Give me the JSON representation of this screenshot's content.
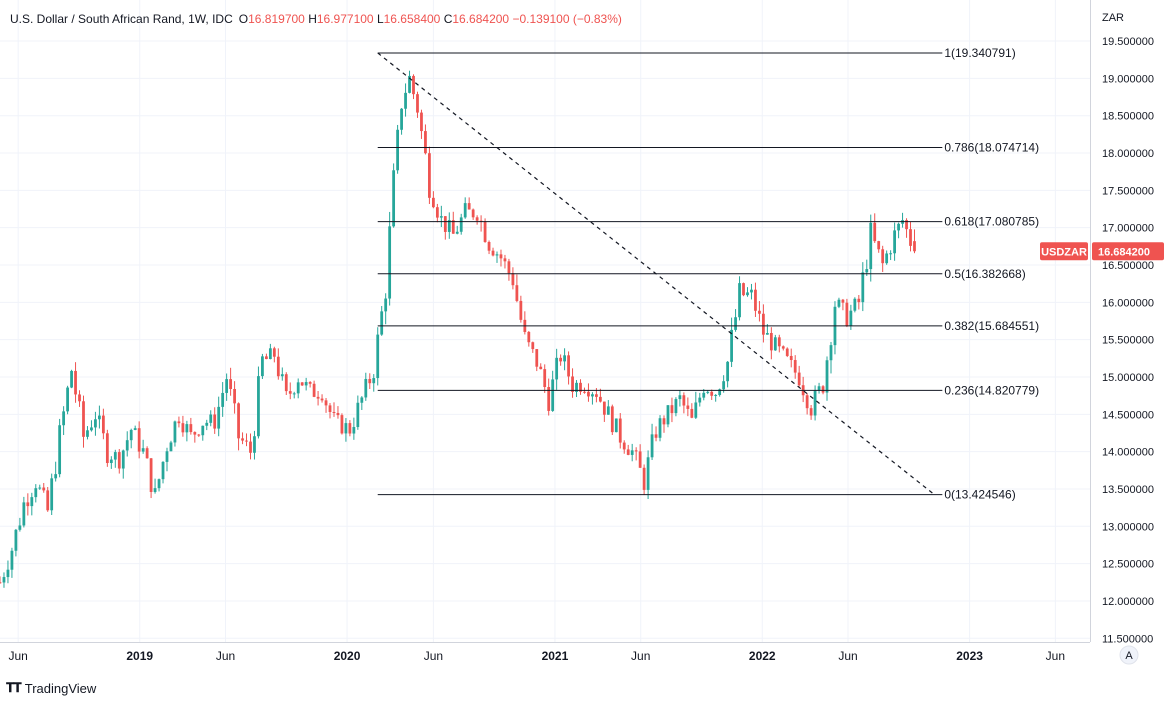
{
  "legend": {
    "symbol": "U.S. Dollar / South African Rand, 1W, IDC",
    "o_label": "O",
    "o_value": "16.819700",
    "h_label": "H",
    "h_value": "16.977100",
    "l_label": "L",
    "l_value": "16.658400",
    "c_label": "C",
    "c_value": "16.684200",
    "change": "−0.139100 (−0.83%)"
  },
  "branding": {
    "logo_text": "TradingView"
  },
  "colors": {
    "up": "#26a69a",
    "down": "#ef5350",
    "price_tag": "#ef5350",
    "grid": "#f0f3fa",
    "line": "#131722"
  },
  "chart_data": {
    "type": "candlestick",
    "currency_label": "ZAR",
    "ylim": [
      11.45,
      20.05
    ],
    "y_ticks": [
      {
        "value": 11.5,
        "label": "11.500000"
      },
      {
        "value": 12.0,
        "label": "12.000000"
      },
      {
        "value": 12.5,
        "label": "12.500000"
      },
      {
        "value": 13.0,
        "label": "13.000000"
      },
      {
        "value": 13.5,
        "label": "13.500000"
      },
      {
        "value": 14.0,
        "label": "14.000000"
      },
      {
        "value": 14.5,
        "label": "14.500000"
      },
      {
        "value": 15.0,
        "label": "15.000000"
      },
      {
        "value": 15.5,
        "label": "15.500000"
      },
      {
        "value": 16.0,
        "label": "16.000000"
      },
      {
        "value": 16.5,
        "label": "16.500000"
      },
      {
        "value": 17.0,
        "label": "17.000000"
      },
      {
        "value": 17.5,
        "label": "17.500000"
      },
      {
        "value": 18.0,
        "label": "18.000000"
      },
      {
        "value": 18.5,
        "label": "18.500000"
      },
      {
        "value": 19.0,
        "label": "19.000000"
      },
      {
        "value": 19.5,
        "label": "19.500000"
      }
    ],
    "x_start": "2018-04-30",
    "x_end": "2023-08-01",
    "x_ticks": [
      {
        "date": "2018-06-01",
        "label": "Jun",
        "bold": false
      },
      {
        "date": "2019-01-01",
        "label": "2019",
        "bold": true
      },
      {
        "date": "2019-06-01",
        "label": "Jun",
        "bold": false
      },
      {
        "date": "2020-01-01",
        "label": "2020",
        "bold": true
      },
      {
        "date": "2020-06-01",
        "label": "Jun",
        "bold": false
      },
      {
        "date": "2021-01-01",
        "label": "2021",
        "bold": true
      },
      {
        "date": "2021-06-01",
        "label": "Jun",
        "bold": false
      },
      {
        "date": "2022-01-01",
        "label": "2022",
        "bold": true
      },
      {
        "date": "2022-06-01",
        "label": "Jun",
        "bold": false
      },
      {
        "date": "2023-01-01",
        "label": "2023",
        "bold": true
      },
      {
        "date": "2023-06-01",
        "label": "Jun",
        "bold": false
      }
    ],
    "last_price": {
      "value": 16.6842,
      "symbol_label": "USDZAR",
      "price_label": "16.684200"
    },
    "fibonacci": {
      "start_date": "2020-02-24",
      "end_date": "2022-11-14",
      "line_start_date": "2020-02-24",
      "line_end_date": "2022-10-31",
      "levels": [
        {
          "ratio": 1,
          "value": 19.340791,
          "label": "1(19.340791)"
        },
        {
          "ratio": 0.786,
          "value": 18.074714,
          "label": "0.786(18.074714)"
        },
        {
          "ratio": 0.618,
          "value": 17.080785,
          "label": "0.618(17.080785)"
        },
        {
          "ratio": 0.5,
          "value": 16.382668,
          "label": "0.5(16.382668)"
        },
        {
          "ratio": 0.382,
          "value": 15.684551,
          "label": "0.382(15.684551)"
        },
        {
          "ratio": 0.236,
          "value": 14.820779,
          "label": "0.236(14.820779)"
        },
        {
          "ratio": 0,
          "value": 13.424546,
          "label": "0(13.424546)"
        }
      ]
    },
    "series_path": [
      [
        "2018-04-30",
        12.25
      ],
      [
        "2018-05-21",
        12.7
      ],
      [
        "2018-06-11",
        13.3
      ],
      [
        "2018-07-02",
        13.6
      ],
      [
        "2018-07-23",
        13.2
      ],
      [
        "2018-08-13",
        14.2
      ],
      [
        "2018-09-03",
        15.1
      ],
      [
        "2018-09-24",
        14.2
      ],
      [
        "2018-10-15",
        14.5
      ],
      [
        "2018-11-05",
        14.0
      ],
      [
        "2018-11-26",
        13.9
      ],
      [
        "2018-12-17",
        14.3
      ],
      [
        "2019-01-07",
        14.0
      ],
      [
        "2019-01-28",
        13.4
      ],
      [
        "2019-02-18",
        14.1
      ],
      [
        "2019-03-11",
        14.5
      ],
      [
        "2019-04-01",
        14.2
      ],
      [
        "2019-04-22",
        14.4
      ],
      [
        "2019-05-13",
        14.4
      ],
      [
        "2019-06-03",
        15.0
      ],
      [
        "2019-06-24",
        14.2
      ],
      [
        "2019-07-15",
        14.0
      ],
      [
        "2019-08-05",
        15.2
      ],
      [
        "2019-08-26",
        15.3
      ],
      [
        "2019-09-16",
        14.7
      ],
      [
        "2019-10-07",
        15.0
      ],
      [
        "2019-10-28",
        14.8
      ],
      [
        "2019-11-18",
        14.8
      ],
      [
        "2019-12-09",
        14.4
      ],
      [
        "2020-01-06",
        14.3
      ],
      [
        "2020-01-27",
        14.7
      ],
      [
        "2020-02-17",
        15.1
      ],
      [
        "2020-03-09",
        16.2
      ],
      [
        "2020-03-23",
        17.6
      ],
      [
        "2020-04-06",
        18.7
      ],
      [
        "2020-04-20",
        19.0
      ],
      [
        "2020-05-04",
        18.6
      ],
      [
        "2020-05-25",
        17.6
      ],
      [
        "2020-06-15",
        17.1
      ],
      [
        "2020-07-06",
        16.9
      ],
      [
        "2020-07-27",
        17.2
      ],
      [
        "2020-08-17",
        17.2
      ],
      [
        "2020-09-07",
        16.8
      ],
      [
        "2020-09-28",
        16.6
      ],
      [
        "2020-10-19",
        16.3
      ],
      [
        "2020-11-09",
        15.5
      ],
      [
        "2020-11-30",
        15.2
      ],
      [
        "2020-12-21",
        14.7
      ],
      [
        "2021-01-11",
        15.3
      ],
      [
        "2021-02-01",
        14.9
      ],
      [
        "2021-02-22",
        14.9
      ],
      [
        "2021-03-15",
        14.8
      ],
      [
        "2021-04-05",
        14.5
      ],
      [
        "2021-04-26",
        14.2
      ],
      [
        "2021-05-17",
        14.0
      ],
      [
        "2021-06-07",
        13.6
      ],
      [
        "2021-06-28",
        14.3
      ],
      [
        "2021-07-19",
        14.5
      ],
      [
        "2021-08-09",
        14.7
      ],
      [
        "2021-08-30",
        14.4
      ],
      [
        "2021-09-20",
        14.9
      ],
      [
        "2021-10-11",
        14.8
      ],
      [
        "2021-11-01",
        15.2
      ],
      [
        "2021-11-22",
        16.1
      ],
      [
        "2021-12-13",
        16.1
      ],
      [
        "2022-01-03",
        15.6
      ],
      [
        "2022-01-24",
        15.4
      ],
      [
        "2022-02-14",
        15.2
      ],
      [
        "2022-03-07",
        15.0
      ],
      [
        "2022-03-28",
        14.6
      ],
      [
        "2022-04-18",
        14.9
      ],
      [
        "2022-05-09",
        16.0
      ],
      [
        "2022-05-30",
        15.8
      ],
      [
        "2022-06-20",
        16.0
      ],
      [
        "2022-07-11",
        16.9
      ],
      [
        "2022-08-01",
        16.5
      ],
      [
        "2022-08-22",
        16.9
      ],
      [
        "2022-09-05",
        17.1
      ],
      [
        "2022-09-26",
        16.68
      ]
    ]
  }
}
